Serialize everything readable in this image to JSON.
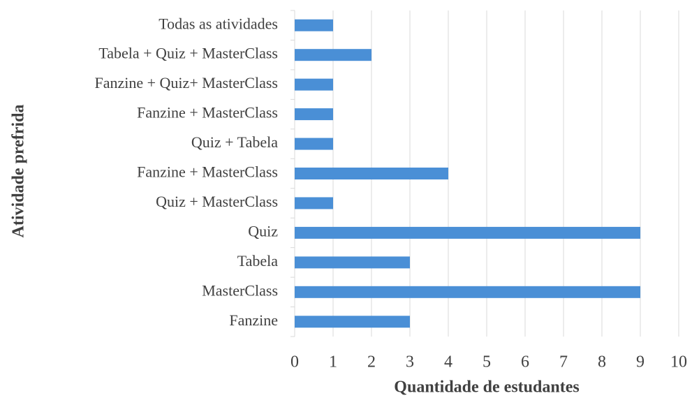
{
  "chart_data": {
    "type": "bar",
    "orientation": "horizontal",
    "x_label": "Quantidade de estudantes",
    "y_label": "Atividade prefrida",
    "categories": [
      "Todas as atividades",
      "Tabela + Quiz + MasterClass",
      "Fanzine + Quiz+ MasterClass",
      "Fanzine + MasterClass",
      "Quiz + Tabela",
      "Fanzine + MasterClass",
      "Quiz + MasterClass",
      "Quiz",
      "Tabela",
      "MasterClass",
      "Fanzine"
    ],
    "values": [
      1,
      2,
      1,
      1,
      1,
      4,
      1,
      9,
      3,
      9,
      3
    ],
    "color": "#4a8fd6",
    "xlim": [
      0,
      10
    ],
    "xticks": [
      0,
      1,
      2,
      3,
      4,
      5,
      6,
      7,
      8,
      9,
      10
    ],
    "grid": true
  }
}
